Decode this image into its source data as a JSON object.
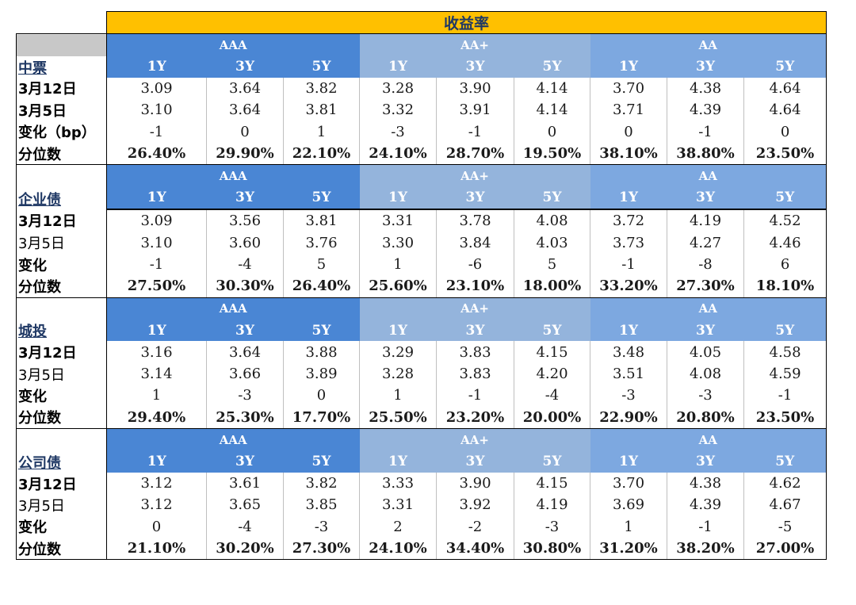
{
  "title": "收益率",
  "grades": [
    "AAA",
    "AA+",
    "AA"
  ],
  "tenors": [
    "1Y",
    "3Y",
    "5Y"
  ],
  "sections": [
    {
      "name": "中票",
      "rows": [
        {
          "label": "3月12日",
          "bold": true,
          "values": [
            "3.09",
            "3.64",
            "3.82",
            "3.28",
            "3.90",
            "4.14",
            "3.70",
            "4.38",
            "4.64"
          ]
        },
        {
          "label": "3月5日",
          "bold": true,
          "values": [
            "3.10",
            "3.64",
            "3.81",
            "3.32",
            "3.91",
            "4.14",
            "3.71",
            "4.39",
            "4.64"
          ]
        },
        {
          "label": "变化（bp）",
          "bold": true,
          "values": [
            "-1",
            "0",
            "1",
            "-3",
            "-1",
            "0",
            "0",
            "-1",
            "0"
          ]
        },
        {
          "label": "分位数",
          "bold": true,
          "values": [
            "26.40%",
            "29.90%",
            "22.10%",
            "24.10%",
            "28.70%",
            "19.50%",
            "38.10%",
            "38.80%",
            "23.50%"
          ]
        }
      ]
    },
    {
      "name": "企业债",
      "rows": [
        {
          "label": "3月12日",
          "bold": true,
          "values": [
            "3.09",
            "3.56",
            "3.81",
            "3.31",
            "3.78",
            "4.08",
            "3.72",
            "4.19",
            "4.52"
          ]
        },
        {
          "label": "3月5日",
          "bold": false,
          "values": [
            "3.10",
            "3.60",
            "3.76",
            "3.30",
            "3.84",
            "4.03",
            "3.73",
            "4.27",
            "4.46"
          ]
        },
        {
          "label": "变化",
          "bold": true,
          "values": [
            "-1",
            "-4",
            "5",
            "1",
            "-6",
            "5",
            "-1",
            "-8",
            "6"
          ]
        },
        {
          "label": "分位数",
          "bold": true,
          "values": [
            "27.50%",
            "30.30%",
            "26.40%",
            "25.60%",
            "23.10%",
            "18.00%",
            "33.20%",
            "27.30%",
            "18.10%"
          ]
        }
      ]
    },
    {
      "name": "城投",
      "rows": [
        {
          "label": "3月12日",
          "bold": true,
          "values": [
            "3.16",
            "3.64",
            "3.88",
            "3.29",
            "3.83",
            "4.15",
            "3.48",
            "4.05",
            "4.58"
          ]
        },
        {
          "label": "3月5日",
          "bold": false,
          "values": [
            "3.14",
            "3.66",
            "3.89",
            "3.28",
            "3.83",
            "4.20",
            "3.51",
            "4.08",
            "4.59"
          ]
        },
        {
          "label": "变化",
          "bold": true,
          "values": [
            "1",
            "-3",
            "0",
            "1",
            "-1",
            "-4",
            "-3",
            "-3",
            "-1"
          ]
        },
        {
          "label": "分位数",
          "bold": true,
          "values": [
            "29.40%",
            "25.30%",
            "17.70%",
            "25.50%",
            "23.20%",
            "20.00%",
            "22.90%",
            "20.80%",
            "23.50%"
          ]
        }
      ]
    },
    {
      "name": "公司债",
      "rows": [
        {
          "label": "3月12日",
          "bold": true,
          "values": [
            "3.12",
            "3.61",
            "3.82",
            "3.33",
            "3.90",
            "4.15",
            "3.70",
            "4.38",
            "4.62"
          ]
        },
        {
          "label": "3月5日",
          "bold": false,
          "values": [
            "3.12",
            "3.65",
            "3.85",
            "3.31",
            "3.92",
            "4.19",
            "3.69",
            "4.39",
            "4.67"
          ]
        },
        {
          "label": "变化",
          "bold": true,
          "values": [
            "0",
            "-4",
            "-3",
            "2",
            "-2",
            "-3",
            "1",
            "-1",
            "-5"
          ]
        },
        {
          "label": "分位数",
          "bold": true,
          "values": [
            "21.10%",
            "30.20%",
            "27.30%",
            "24.10%",
            "34.40%",
            "30.80%",
            "31.20%",
            "38.20%",
            "27.00%"
          ]
        }
      ]
    }
  ],
  "colors": {
    "title_bg": "#ffc000",
    "aaa_bg": "#4a86d4",
    "aaplus_bg": "#94b4dc",
    "aa_bg": "#7da8e0"
  }
}
